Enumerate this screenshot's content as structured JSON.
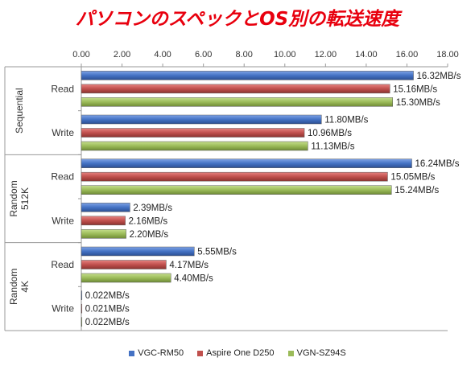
{
  "chart_data": {
    "type": "bar",
    "orientation": "horizontal",
    "title": "パソコンのスペックとOS別の転送速度",
    "xlim": [
      0,
      18
    ],
    "x_ticks": [
      "0.00",
      "2.00",
      "4.00",
      "6.00",
      "8.00",
      "10.00",
      "12.00",
      "14.00",
      "16.00",
      "18.00"
    ],
    "x_axis_position": "top",
    "grid": false,
    "legend_position": "bottom",
    "groups": [
      {
        "name": "Sequential",
        "categories": [
          "Read",
          "Write"
        ]
      },
      {
        "name": "Random 512K",
        "categories": [
          "Read",
          "Write"
        ]
      },
      {
        "name": "Random 4K",
        "categories": [
          "Read",
          "Write"
        ]
      }
    ],
    "series": [
      {
        "name": "VGC-RM50",
        "color": "#4472c4",
        "values": [
          16.32,
          11.8,
          16.24,
          2.39,
          5.55,
          0.022
        ],
        "labels": [
          "16.32MB/s",
          "11.80MB/s",
          "16.24MB/s",
          "2.39MB/s",
          "5.55MB/s",
          "0.022MB/s"
        ]
      },
      {
        "name": "Aspire One D250",
        "color": "#c0504d",
        "values": [
          15.16,
          10.96,
          15.05,
          2.16,
          4.17,
          0.021
        ],
        "labels": [
          "15.16MB/s",
          "10.96MB/s",
          "15.05MB/s",
          "2.16MB/s",
          "4.17MB/s",
          "0.021MB/s"
        ]
      },
      {
        "name": "VGN-SZ94S",
        "color": "#9bbb59",
        "values": [
          15.3,
          11.13,
          15.24,
          2.2,
          4.4,
          0.022
        ],
        "labels": [
          "15.30MB/s",
          "11.13MB/s",
          "15.24MB/s",
          "2.20MB/s",
          "4.40MB/s",
          "0.022MB/s"
        ]
      }
    ]
  }
}
